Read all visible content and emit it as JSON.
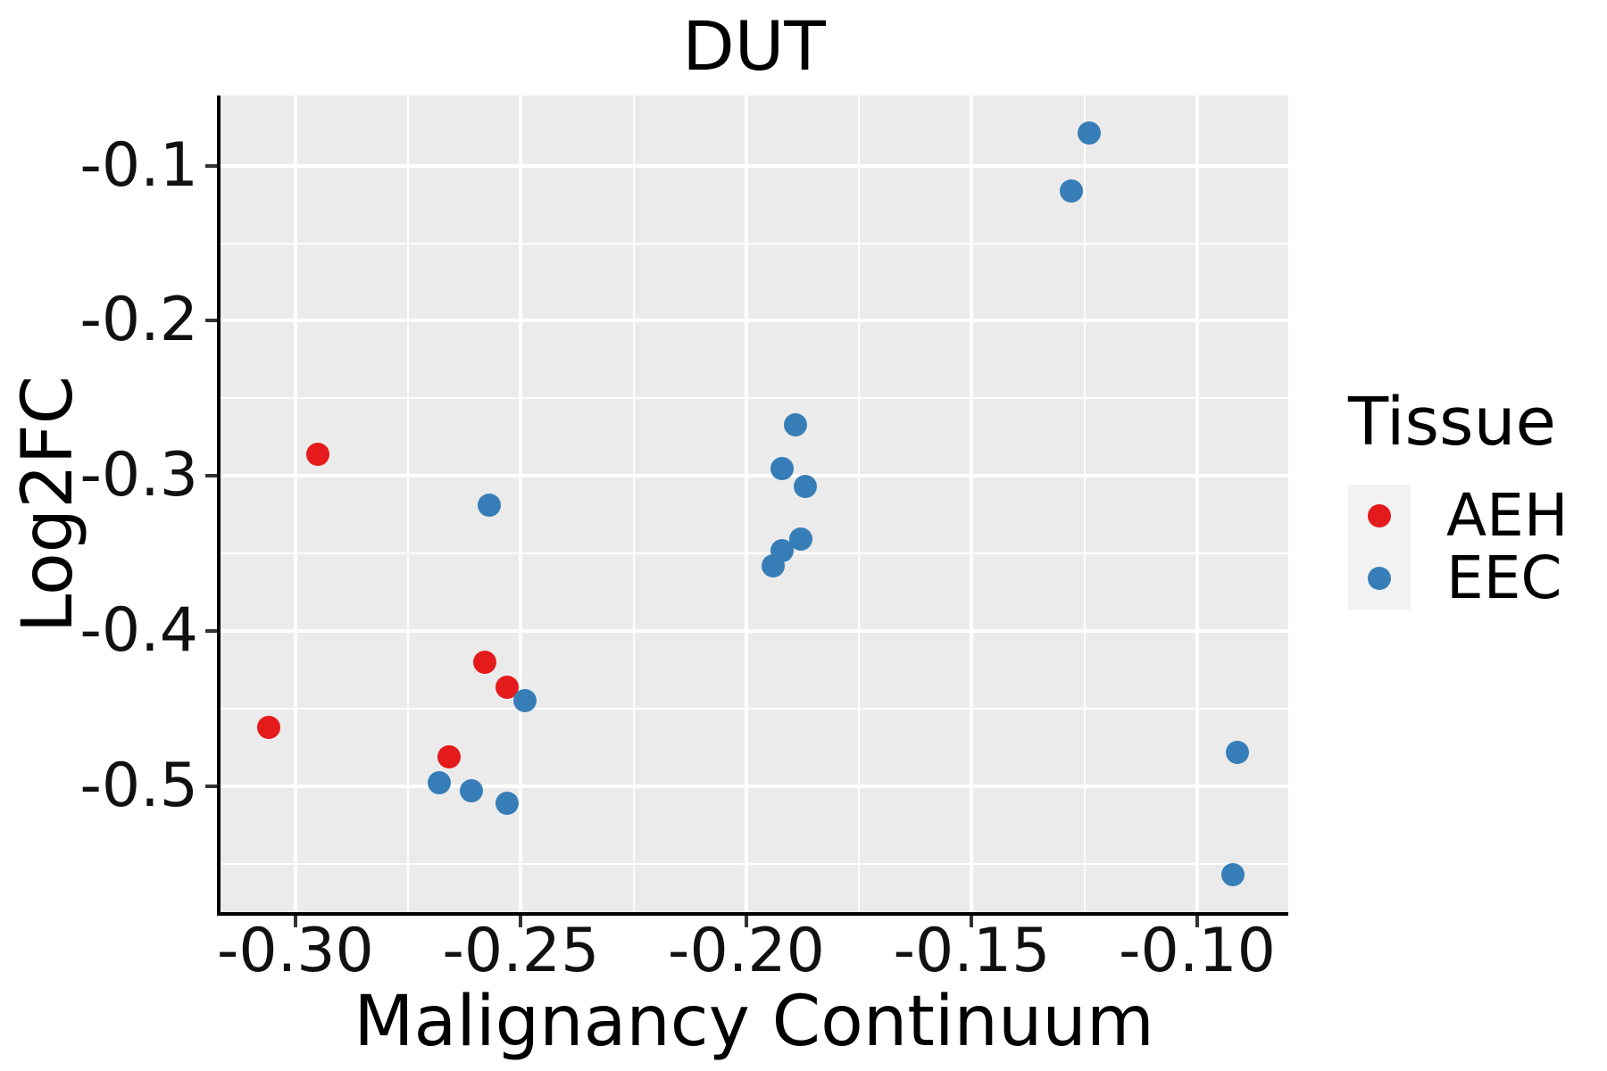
{
  "chart_data": {
    "type": "scatter",
    "title": "DUT",
    "xlabel": "Malignancy Continuum",
    "ylabel": "Log2FC",
    "xlim": [
      -0.3168,
      -0.0798
    ],
    "ylim": [
      -0.5813,
      -0.0547
    ],
    "grid": "major-minor, white on grey panel",
    "legend_position": "right",
    "x_ticks": {
      "values": [
        -0.3,
        -0.25,
        -0.2,
        -0.15,
        -0.1
      ],
      "labels": [
        "-0.30",
        "-0.25",
        "-0.20",
        "-0.15",
        "-0.10"
      ]
    },
    "y_ticks": {
      "values": [
        -0.1,
        -0.2,
        -0.3,
        -0.4,
        -0.5
      ],
      "labels": [
        "-0.1",
        "-0.2",
        "-0.3",
        "-0.4",
        "-0.5"
      ]
    },
    "x_minor": [
      -0.275,
      -0.225,
      -0.175,
      -0.125
    ],
    "y_minor": [
      -0.15,
      -0.25,
      -0.35,
      -0.45,
      -0.55
    ],
    "legend": {
      "title": "Tissue",
      "entries": [
        {
          "label": "AEH",
          "color": "#E41A1C"
        },
        {
          "label": "EEC",
          "color": "#377EB8"
        }
      ]
    },
    "series": [
      {
        "name": "AEH",
        "color": "#E41A1C",
        "points": [
          [
            -0.295,
            -0.286
          ],
          [
            -0.306,
            -0.462
          ],
          [
            -0.258,
            -0.42
          ],
          [
            -0.253,
            -0.436
          ],
          [
            -0.266,
            -0.481
          ]
        ]
      },
      {
        "name": "EEC",
        "color": "#377EB8",
        "points": [
          [
            -0.124,
            -0.079
          ],
          [
            -0.128,
            -0.116
          ],
          [
            -0.189,
            -0.267
          ],
          [
            -0.192,
            -0.295
          ],
          [
            -0.187,
            -0.307
          ],
          [
            -0.188,
            -0.341
          ],
          [
            -0.192,
            -0.348
          ],
          [
            -0.194,
            -0.358
          ],
          [
            -0.257,
            -0.319
          ],
          [
            -0.249,
            -0.445
          ],
          [
            -0.268,
            -0.498
          ],
          [
            -0.261,
            -0.503
          ],
          [
            -0.253,
            -0.511
          ],
          [
            -0.091,
            -0.478
          ],
          [
            -0.092,
            -0.557
          ]
        ]
      }
    ],
    "colors": {
      "panel_background": "#EBEBEB",
      "gridline": "#FFFFFF",
      "axis_line": "#000000",
      "tick_mark": "#333333",
      "legend_key_background": "#F2F2F2",
      "text": "#000000"
    }
  }
}
